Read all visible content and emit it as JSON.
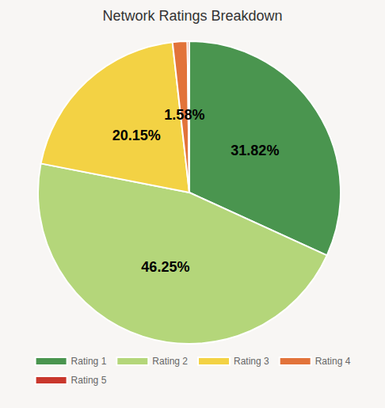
{
  "chart_data": {
    "type": "pie",
    "title": "Network Ratings Breakdown",
    "categories": [
      "Rating 1",
      "Rating 2",
      "Rating 3",
      "Rating 4",
      "Rating 5"
    ],
    "values": [
      31.82,
      46.25,
      20.15,
      1.58,
      0.2
    ],
    "value_labels": [
      "31.82%",
      "46.25%",
      "20.15%",
      "1.58%",
      null
    ],
    "colors": [
      "#4a954f",
      "#b4d67a",
      "#f3d244",
      "#e2733a",
      "#c9372c"
    ],
    "data_labels": true,
    "legend": "bottom"
  }
}
